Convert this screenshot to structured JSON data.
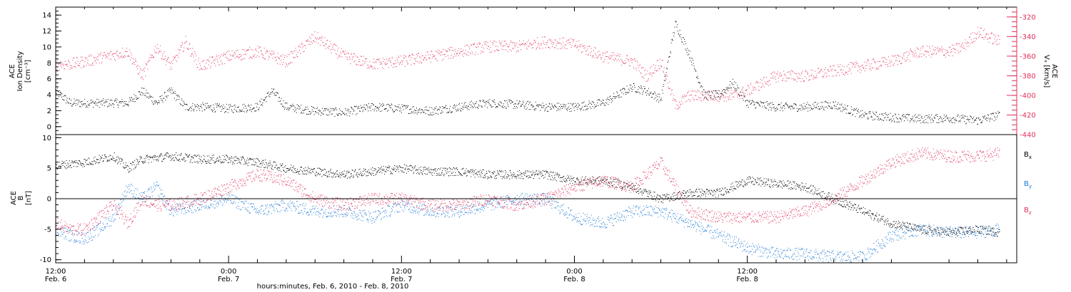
{
  "colors": {
    "black": "#000000",
    "red": "#e0305a",
    "blue": "#1e78d2"
  },
  "chart_data": [
    {
      "type": "scatter",
      "panel": "top",
      "left_axis": {
        "label_lines": [
          "ACE",
          "Ion Density",
          "[cm⁻³]"
        ],
        "ylim": [
          -1,
          15
        ],
        "ticks": [
          0,
          2,
          4,
          6,
          8,
          10,
          12,
          14
        ]
      },
      "right_axis": {
        "label_lines": [
          "ACE",
          "Vₓ [km/s]"
        ],
        "ylim": [
          -440,
          -310
        ],
        "ticks": [
          -320,
          -340,
          -360,
          -380,
          -400,
          -420,
          -440
        ]
      },
      "series": [
        {
          "axis": "left",
          "color": "black",
          "anchors_hours": [
            0,
            1,
            3,
            5,
            6,
            7,
            8,
            9,
            10,
            12,
            14,
            15,
            16,
            18,
            20,
            22,
            24,
            26,
            28,
            30,
            32,
            34,
            36,
            38,
            39,
            40,
            41,
            42,
            43,
            44,
            45,
            46,
            47,
            48,
            50,
            52,
            54,
            56,
            58,
            60,
            62,
            64,
            65.5
          ],
          "values": [
            4.5,
            3,
            3,
            3,
            4.5,
            3,
            4.5,
            2.5,
            2.5,
            2.3,
            2.5,
            4.5,
            2.5,
            2,
            1.8,
            2.5,
            2.3,
            2,
            2.5,
            3,
            2.8,
            2.5,
            2.5,
            3,
            4,
            5,
            4.5,
            3.5,
            13,
            9,
            4,
            4,
            5.5,
            3,
            2.5,
            2.5,
            2.8,
            1.5,
            1.2,
            1,
            1.1,
            0.8,
            1.5
          ]
        },
        {
          "axis": "right",
          "color": "red",
          "anchors_hours": [
            0,
            1,
            3,
            5,
            6,
            7,
            8,
            9,
            10,
            12,
            14,
            16,
            18,
            20,
            22,
            24,
            26,
            28,
            30,
            32,
            34,
            36,
            38,
            40,
            41,
            42,
            43,
            44,
            45,
            46,
            47,
            48,
            50,
            52,
            54,
            56,
            58,
            60,
            62,
            63,
            64,
            65.5
          ],
          "values": [
            -368,
            -368,
            -362,
            -355,
            -380,
            -350,
            -370,
            -345,
            -370,
            -360,
            -355,
            -365,
            -340,
            -360,
            -368,
            -365,
            -360,
            -355,
            -350,
            -350,
            -345,
            -348,
            -360,
            -365,
            -380,
            -365,
            -410,
            -400,
            -400,
            -400,
            -400,
            -395,
            -380,
            -380,
            -375,
            -370,
            -365,
            -355,
            -355,
            -350,
            -335,
            -345
          ]
        }
      ]
    },
    {
      "type": "scatter",
      "panel": "bottom",
      "left_axis": {
        "label_lines": [
          "ACE",
          "B",
          "[nT]"
        ],
        "ylim": [
          -10.5,
          10.5
        ],
        "ticks": [
          -10,
          -5,
          0,
          5,
          10
        ]
      },
      "series": [
        {
          "name": "Bₓ",
          "color": "black",
          "anchors_hours": [
            0,
            2,
            3,
            4,
            5,
            6,
            8,
            10,
            12,
            14,
            16,
            18,
            20,
            22,
            24,
            26,
            28,
            30,
            32,
            34,
            36,
            38,
            40,
            42,
            44,
            46,
            48,
            50,
            52,
            54,
            56,
            58,
            60,
            62,
            64,
            65.5
          ],
          "values": [
            5.5,
            6,
            6.5,
            7,
            5,
            6.5,
            7,
            6.5,
            6.5,
            6,
            5,
            4.5,
            4,
            4.5,
            5,
            4.5,
            4.5,
            4,
            4,
            4,
            3,
            3,
            2,
            0,
            1,
            1,
            3,
            2.5,
            2,
            0,
            -2,
            -4,
            -5,
            -5.5,
            -5,
            -5.5
          ]
        },
        {
          "name": "Bᵧ",
          "color": "blue",
          "anchors_hours": [
            0,
            1,
            2,
            3,
            4,
            5,
            6,
            7,
            8,
            10,
            12,
            14,
            16,
            18,
            20,
            22,
            24,
            26,
            28,
            30,
            32,
            34,
            36,
            38,
            40,
            42,
            44,
            46,
            48,
            50,
            52,
            54,
            56,
            58,
            60,
            62,
            64,
            65.5
          ],
          "values": [
            -5,
            -6,
            -6.5,
            -5,
            -3,
            2,
            0,
            2,
            -2,
            -1,
            0,
            -2,
            -1,
            -2,
            -2,
            -3,
            -1,
            -2,
            -2,
            -1,
            0,
            0,
            -3,
            -4,
            -2,
            -2,
            -4,
            -6,
            -8,
            -9,
            -9,
            -9.5,
            -9.5,
            -6,
            -5,
            -5.5,
            -5.5,
            -5
          ]
        },
        {
          "name": "B_z",
          "color": "red",
          "anchors_hours": [
            0,
            1,
            2,
            3,
            4,
            5,
            6,
            7,
            8,
            10,
            12,
            14,
            16,
            18,
            20,
            22,
            24,
            26,
            28,
            30,
            32,
            34,
            36,
            38,
            40,
            42,
            44,
            46,
            48,
            50,
            52,
            54,
            56,
            58,
            60,
            62,
            64,
            65.5
          ],
          "values": [
            -4,
            -5,
            -5,
            -3,
            -1,
            -4,
            0,
            -1,
            -1,
            0,
            2,
            4,
            3,
            0,
            -1,
            0,
            0,
            -1,
            -1,
            0,
            -1,
            0,
            2,
            3,
            2,
            6,
            -2,
            -3,
            -3,
            -3,
            -2,
            0,
            3,
            6,
            7.5,
            7,
            7,
            7.5
          ]
        }
      ]
    }
  ],
  "x_axis": {
    "range_hours": [
      0,
      66.7
    ],
    "major": [
      {
        "hours": 0,
        "time": "12:00",
        "date": "Feb. 6"
      },
      {
        "hours": 12,
        "time": "0:00",
        "date": "Feb. 7"
      },
      {
        "hours": 24,
        "time": "12:00",
        "date": "Feb. 7"
      },
      {
        "hours": 36,
        "time": "0:00",
        "date": "Feb. 8"
      },
      {
        "hours": 48,
        "time": "12:00",
        "date": "Feb. 8"
      }
    ],
    "title": "hours:minutes, Feb.  6, 2010 - Feb.  8, 2010"
  },
  "legend_labels": {
    "bx": "B",
    "bx_sub": "x",
    "by": "B",
    "by_sub": "y",
    "bz": "B",
    "bz_sub": "z"
  }
}
